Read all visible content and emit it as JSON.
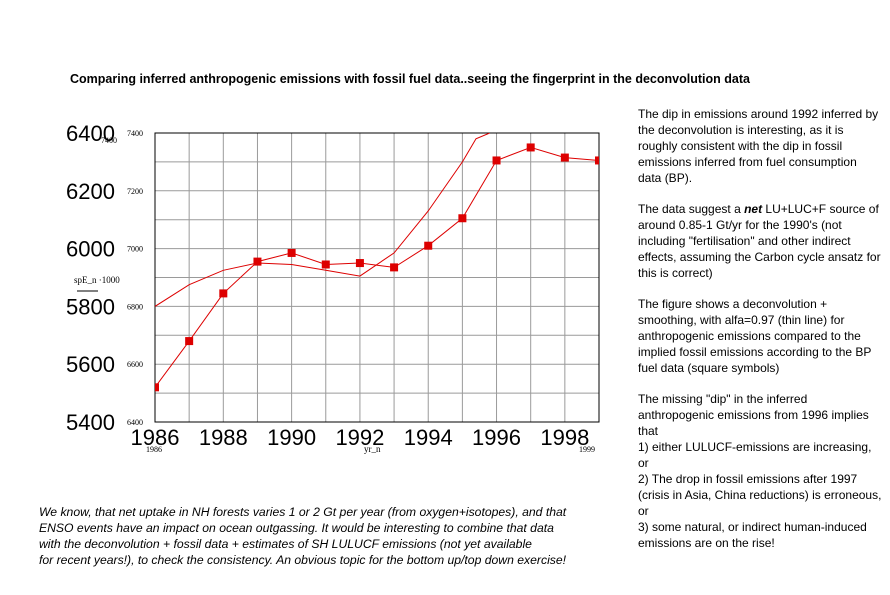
{
  "title": "Comparing inferred anthropogenic emissions with fossil fuel data..seeing the fingerprint in the deconvolution data",
  "side_text": {
    "p1": "The dip in emissions around 1992 inferred by the deconvolution is interesting, as it is roughly consistent with the dip in fossil emissions inferred from fuel consumption data (BP).",
    "p2_before": "The data suggest a ",
    "p2_em": "net",
    "p2_after": " LU+LUC+F source of around 0.85-1 Gt/yr for the 1990's (not including \"fertilisation\" and other indirect effects, assuming the Carbon cycle ansatz for this is correct)",
    "p3": "The figure shows a deconvolution + smoothing, with alfa=0.97 (thin line) for anthropogenic emissions compared to the implied fossil emissions according to the BP fuel data (square symbols)",
    "p4": {
      "intro": "The missing \"dip\" in the inferred anthropogenic emissions from 1996 implies that",
      "item1": "1) either LULUCF-emissions are increasing, or",
      "item2": "2) The drop in fossil emissions after 1997 (crisis in Asia, China reductions) is erroneous, or",
      "item3": "3) some natural, or indirect human-induced emissions are on the rise!"
    }
  },
  "bottom_text": {
    "line1": "We know, that net uptake in NH forests varies 1 or 2 Gt per year (from oxygen+isotopes), and that",
    "line2": "ENSO events have an impact on ocean outgassing. It would be interesting to combine that data",
    "line3": "with the deconvolution + fossil data + estimates of SH LULUCF emissions (not yet available",
    "line4": "for recent years!), to check the consistency. An obvious topic for the bottom up/top down exercise!"
  },
  "colors": {
    "series": "#dd0000",
    "grid": "#9a9a9a",
    "frame": "#000000",
    "text": "#000000"
  },
  "chart_data": {
    "type": "line",
    "title": "",
    "xlabel": "yr_n",
    "x_range": [
      1986,
      1999
    ],
    "x_ticks": [
      1986,
      1988,
      1990,
      1992,
      1994,
      1996,
      1998
    ],
    "x_tick_labels": [
      "1986",
      "1988",
      "1990",
      "1992",
      "1994",
      "1996",
      "1998"
    ],
    "x_small_labels": {
      "start": "1986",
      "end": "1999"
    },
    "ylabel": "spE_n ·1000",
    "y_left": {
      "range": [
        5400,
        6400
      ],
      "ticks": [
        5400,
        5600,
        5800,
        6000,
        6200,
        6400
      ],
      "tick_labels": [
        "5400",
        "5600",
        "5800",
        "6000",
        "6200",
        "6400"
      ]
    },
    "y_right": {
      "range": [
        6400,
        7400
      ],
      "ticks": [
        6400,
        6600,
        6800,
        7000,
        7200,
        7400
      ],
      "tick_labels": [
        "6400",
        "6600",
        "6800",
        "7000",
        "7200",
        "7400"
      ],
      "top_extra_label": "7400"
    },
    "series": [
      {
        "name": "Implied fossil emissions (BP fuel data, square symbols)",
        "axis": "left",
        "style": "line-markers",
        "x": [
          1986,
          1987,
          1988,
          1989,
          1990,
          1991,
          1992,
          1993,
          1994,
          1995,
          1996,
          1997,
          1998,
          1999
        ],
        "values": [
          5520,
          5680,
          5845,
          5955,
          5985,
          5945,
          5950,
          5935,
          6010,
          6105,
          6305,
          6350,
          6315,
          6305
        ]
      },
      {
        "name": "Deconvolution + smoothing, alfa=0.97 (thin line)",
        "axis": "right",
        "style": "thin-line",
        "x": [
          1986,
          1987,
          1988,
          1989,
          1990,
          1991,
          1992,
          1993,
          1994,
          1995,
          1995.4,
          1995.8
        ],
        "values": [
          6800,
          6875,
          6925,
          6950,
          6945,
          6925,
          6905,
          6985,
          7130,
          7300,
          7380,
          7400
        ]
      }
    ]
  }
}
